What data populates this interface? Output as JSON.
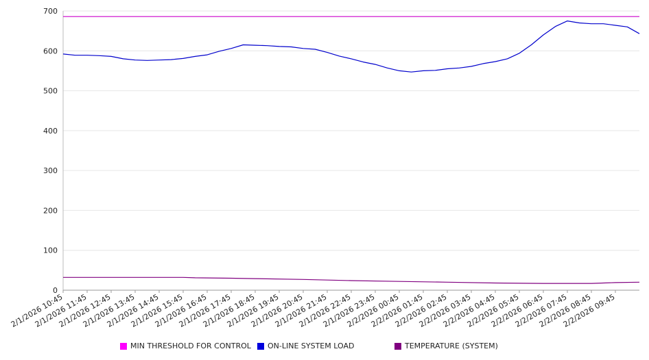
{
  "chart_data": {
    "type": "line",
    "title": "",
    "xlabel": "",
    "ylabel": "",
    "ylim": [
      0,
      700
    ],
    "yticks": [
      0,
      100,
      200,
      300,
      400,
      500,
      600,
      700
    ],
    "grid": true,
    "legend_position": "bottom",
    "x_tick_labels": [
      "2/1/2026 10:45",
      "2/1/2026 11:45",
      "2/1/2026 12:45",
      "2/1/2026 13:45",
      "2/1/2026 14:45",
      "2/1/2026 15:45",
      "2/1/2026 16:45",
      "2/1/2026 17:45",
      "2/1/2026 18:45",
      "2/1/2026 19:45",
      "2/1/2026 20:45",
      "2/1/2026 21:45",
      "2/1/2026 22:45",
      "2/1/2026 23:45",
      "2/2/2026 00:45",
      "2/2/2026 01:45",
      "2/2/2026 02:45",
      "2/2/2026 03:45",
      "2/2/2026 04:45",
      "2/2/2026 05:45",
      "2/2/2026 06:45",
      "2/2/2026 07:45",
      "2/2/2026 08:45",
      "2/2/2026 09:45"
    ],
    "x_range": [
      "2/1/2026 10:45",
      "2/2/2026 10:45"
    ],
    "series": [
      {
        "name": "MIN THRESHOLD FOR CONTROL",
        "color": "#cc00cc",
        "points": [
          [
            "2/1/2026 10:45",
            686
          ],
          [
            "2/2/2026 10:45",
            686
          ]
        ]
      },
      {
        "name": "ON-LINE SYSTEM LOAD",
        "color": "#0000cc",
        "points": [
          [
            "2/1/2026 10:45",
            592
          ],
          [
            "2/1/2026 11:15",
            589
          ],
          [
            "2/1/2026 11:45",
            589
          ],
          [
            "2/1/2026 12:15",
            588
          ],
          [
            "2/1/2026 12:45",
            586
          ],
          [
            "2/1/2026 13:15",
            580
          ],
          [
            "2/1/2026 13:45",
            577
          ],
          [
            "2/1/2026 14:15",
            576
          ],
          [
            "2/1/2026 14:45",
            577
          ],
          [
            "2/1/2026 15:15",
            578
          ],
          [
            "2/1/2026 15:45",
            581
          ],
          [
            "2/1/2026 16:15",
            586
          ],
          [
            "2/1/2026 16:45",
            590
          ],
          [
            "2/1/2026 17:15",
            599
          ],
          [
            "2/1/2026 17:45",
            606
          ],
          [
            "2/1/2026 18:15",
            615
          ],
          [
            "2/1/2026 18:45",
            614
          ],
          [
            "2/1/2026 19:15",
            613
          ],
          [
            "2/1/2026 19:45",
            611
          ],
          [
            "2/1/2026 20:15",
            610
          ],
          [
            "2/1/2026 20:45",
            606
          ],
          [
            "2/1/2026 21:15",
            604
          ],
          [
            "2/1/2026 21:45",
            596
          ],
          [
            "2/1/2026 22:15",
            587
          ],
          [
            "2/1/2026 22:45",
            580
          ],
          [
            "2/1/2026 23:15",
            572
          ],
          [
            "2/1/2026 23:45",
            566
          ],
          [
            "2/2/2026 00:15",
            557
          ],
          [
            "2/2/2026 00:45",
            550
          ],
          [
            "2/2/2026 01:15",
            547
          ],
          [
            "2/2/2026 01:45",
            550
          ],
          [
            "2/2/2026 02:15",
            551
          ],
          [
            "2/2/2026 02:45",
            555
          ],
          [
            "2/2/2026 03:15",
            557
          ],
          [
            "2/2/2026 03:45",
            561
          ],
          [
            "2/2/2026 04:15",
            568
          ],
          [
            "2/2/2026 04:45",
            573
          ],
          [
            "2/2/2026 05:15",
            580
          ],
          [
            "2/2/2026 05:45",
            594
          ],
          [
            "2/2/2026 06:15",
            615
          ],
          [
            "2/2/2026 06:45",
            640
          ],
          [
            "2/2/2026 07:15",
            661
          ],
          [
            "2/2/2026 07:45",
            675
          ],
          [
            "2/2/2026 08:15",
            670
          ],
          [
            "2/2/2026 08:45",
            668
          ],
          [
            "2/2/2026 09:15",
            668
          ],
          [
            "2/2/2026 09:45",
            664
          ],
          [
            "2/2/2026 10:15",
            660
          ],
          [
            "2/2/2026 10:45",
            643
          ]
        ]
      },
      {
        "name": "TEMPERATURE (SYSTEM)",
        "color": "#800080",
        "points": [
          [
            "2/1/2026 10:45",
            32
          ],
          [
            "2/1/2026 15:45",
            32
          ],
          [
            "2/1/2026 16:15",
            31
          ],
          [
            "2/1/2026 17:45",
            30
          ],
          [
            "2/1/2026 18:45",
            29
          ],
          [
            "2/1/2026 20:45",
            27
          ],
          [
            "2/1/2026 22:45",
            24
          ],
          [
            "2/2/2026 00:45",
            22
          ],
          [
            "2/2/2026 02:45",
            20
          ],
          [
            "2/2/2026 04:45",
            18
          ],
          [
            "2/2/2026 06:45",
            17
          ],
          [
            "2/2/2026 08:45",
            17
          ],
          [
            "2/2/2026 09:15",
            18
          ],
          [
            "2/2/2026 09:45",
            19
          ],
          [
            "2/2/2026 10:45",
            20
          ]
        ]
      }
    ]
  }
}
